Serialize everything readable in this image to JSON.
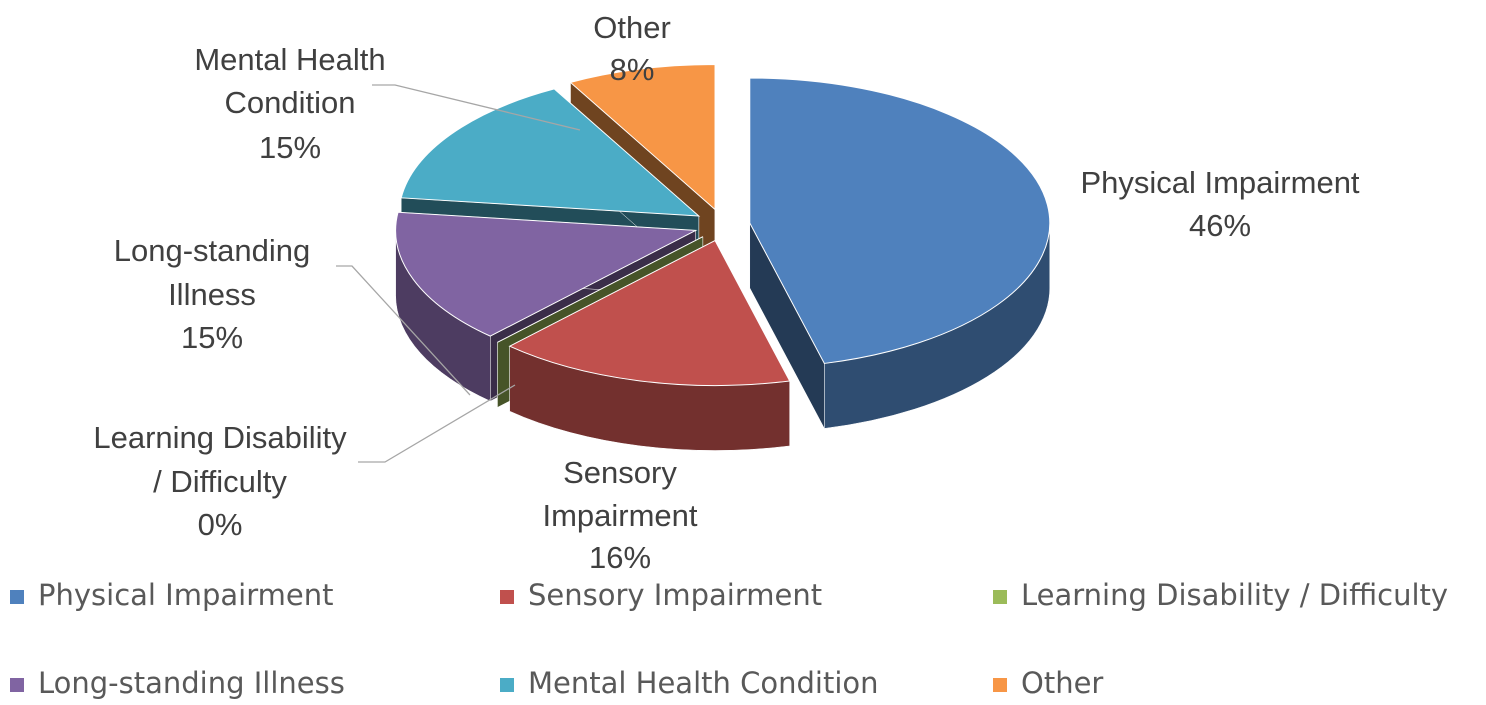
{
  "chart_data": {
    "type": "pie",
    "categories": [
      "Physical Impairment",
      "Sensory Impairment",
      "Learning Disability / Difficulty",
      "Long-standing Illness",
      "Mental Health Condition",
      "Other"
    ],
    "values": [
      46,
      16,
      0,
      15,
      15,
      8
    ],
    "value_labels": [
      "46%",
      "16%",
      "0%",
      "15%",
      "15%",
      "8%"
    ],
    "colors": [
      "#4f81bd",
      "#c0504d",
      "#9bbb59",
      "#8064a2",
      "#4bacc6",
      "#f79646"
    ],
    "legend": "bottom"
  }
}
